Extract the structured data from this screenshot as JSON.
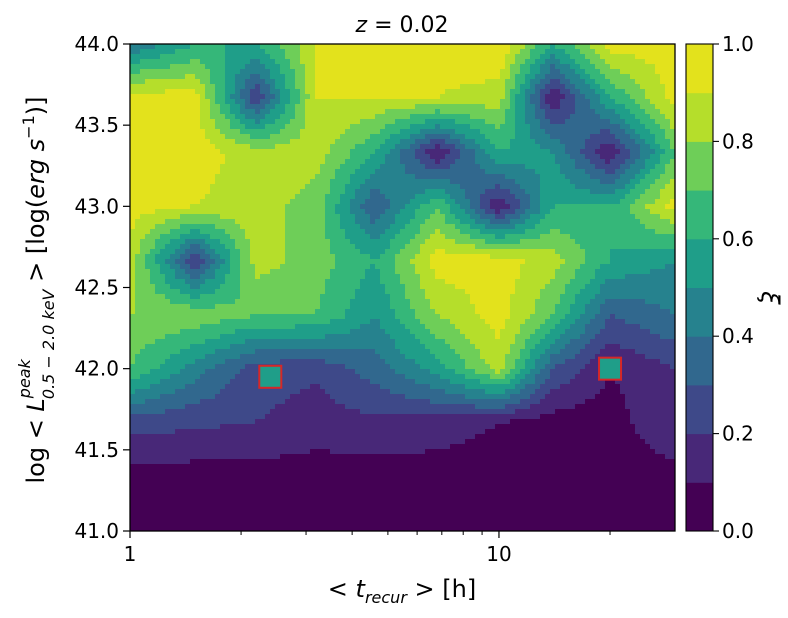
{
  "chart_data": {
    "type": "heatmap",
    "title": "z = 0.02",
    "title_var": "z",
    "title_rest": " = 0.02",
    "xlabel": "< t_recur > [h]",
    "xlabel_parts": {
      "pre": "< ",
      "var": "t",
      "sub": "recur",
      "post": " >  [h]"
    },
    "ylabel": "log < L^peak_0.5-2.0 keV >  [log(erg s^-1)]",
    "ylabel_parts": {
      "pre": "log < ",
      "var": "L",
      "sup": "peak",
      "sub": "0.5 − 2.0 keV",
      "post": " >  [log(",
      "unit": "erg s",
      "exp": "−1",
      "close": ")]"
    },
    "x_scale": "log",
    "xlim": [
      1,
      30
    ],
    "ylim": [
      41.0,
      44.0
    ],
    "x_ticks": [
      {
        "value": 1,
        "label": "1"
      },
      {
        "value": 10,
        "label": "10"
      }
    ],
    "y_ticks": [
      {
        "value": 41.0,
        "label": "41.0"
      },
      {
        "value": 41.5,
        "label": "41.5"
      },
      {
        "value": 42.0,
        "label": "42.0"
      },
      {
        "value": 42.5,
        "label": "42.5"
      },
      {
        "value": 43.0,
        "label": "43.0"
      },
      {
        "value": 43.5,
        "label": "43.5"
      },
      {
        "value": 44.0,
        "label": "44.0"
      }
    ],
    "colorbar": {
      "label": "ξ",
      "range": [
        0.0,
        1.0
      ],
      "levels": [
        0.0,
        0.1,
        0.2,
        0.3,
        0.4,
        0.5,
        0.6,
        0.7,
        0.8,
        0.9,
        1.0
      ],
      "ticks": [
        {
          "value": 0.0,
          "label": "0.0"
        },
        {
          "value": 0.2,
          "label": "0.2"
        },
        {
          "value": 0.4,
          "label": "0.4"
        },
        {
          "value": 0.6,
          "label": "0.6"
        },
        {
          "value": 0.8,
          "label": "0.8"
        },
        {
          "value": 1.0,
          "label": "1.0"
        }
      ],
      "colors": [
        "#440154",
        "#482878",
        "#3e4989",
        "#31688e",
        "#26828e",
        "#1f9e89",
        "#35b779",
        "#6ece58",
        "#b5de2b",
        "#e3e21c"
      ]
    },
    "x_grid": [
      1.0,
      1.5,
      2.2,
      3.2,
      4.6,
      6.8,
      10.0,
      14.0,
      20.0,
      30.0
    ],
    "y_grid": [
      41.0,
      41.33,
      41.67,
      42.0,
      42.33,
      42.67,
      43.0,
      43.33,
      43.67,
      44.0
    ],
    "z_values": [
      [
        0.0,
        0.0,
        0.0,
        0.0,
        0.0,
        0.0,
        0.0,
        0.0,
        0.0,
        0.0
      ],
      [
        0.05,
        0.05,
        0.05,
        0.05,
        0.05,
        0.05,
        0.05,
        0.05,
        0.05,
        0.05
      ],
      [
        0.25,
        0.22,
        0.2,
        0.15,
        0.18,
        0.15,
        0.1,
        0.05,
        0.05,
        0.2
      ],
      [
        0.7,
        0.45,
        0.25,
        0.22,
        0.35,
        0.55,
        0.85,
        0.3,
        0.1,
        0.2
      ],
      [
        0.8,
        0.78,
        0.7,
        0.7,
        0.5,
        0.8,
        0.95,
        0.7,
        0.3,
        0.4
      ],
      [
        0.85,
        0.2,
        0.85,
        0.75,
        0.6,
        0.95,
        0.95,
        0.85,
        0.6,
        0.5
      ],
      [
        0.95,
        0.9,
        0.85,
        0.75,
        0.3,
        0.7,
        0.1,
        0.6,
        0.6,
        0.95
      ],
      [
        0.98,
        0.95,
        0.85,
        0.85,
        0.6,
        0.1,
        0.6,
        0.5,
        0.1,
        0.7
      ],
      [
        0.95,
        0.95,
        0.2,
        0.9,
        0.9,
        0.9,
        0.85,
        0.1,
        0.6,
        0.95
      ],
      [
        0.4,
        0.6,
        0.6,
        0.9,
        0.95,
        0.95,
        1.0,
        0.6,
        0.95,
        0.95
      ]
    ],
    "highlighted_cells": [
      {
        "x": 2.4,
        "y": 41.95,
        "xi": 0.55
      },
      {
        "x": 20.0,
        "y": 42.0,
        "xi": 0.55
      }
    ],
    "highlight_edge_color": "#d62728",
    "grid": false,
    "legend": "none"
  }
}
